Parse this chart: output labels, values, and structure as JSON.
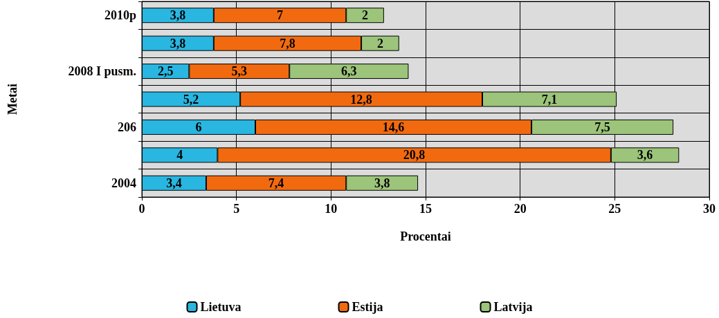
{
  "chart_data": {
    "type": "bar",
    "orientation": "horizontal",
    "stacked": true,
    "xlabel": "Procentai",
    "ylabel": "Metai",
    "categories": [
      "2010p",
      null,
      "2008 I pusm.",
      null,
      "206",
      null,
      "2004"
    ],
    "series": [
      {
        "name": "Lietuva",
        "color": "#29b6e0",
        "values": [
          3.8,
          3.8,
          2.5,
          5.2,
          6,
          4,
          3.4
        ],
        "value_labels": [
          "3,8",
          "3,8",
          "2,5",
          "5,2",
          "6",
          "4",
          "3,4"
        ]
      },
      {
        "name": "Estija",
        "color": "#f26a10",
        "values": [
          7,
          7.8,
          5.3,
          12.8,
          14.6,
          20.8,
          7.4
        ],
        "value_labels": [
          "7",
          "7,8",
          "5,3",
          "12,8",
          "14,6",
          "20,8",
          "7,4"
        ]
      },
      {
        "name": "Latvija",
        "color": "#9cc47a",
        "values": [
          2,
          2,
          6.3,
          7.1,
          7.5,
          3.6,
          3.8
        ],
        "value_labels": [
          "2",
          "2",
          "6,3",
          "7,1",
          "7,5",
          "3,6",
          "3,8"
        ]
      }
    ],
    "xlim": [
      0,
      30
    ],
    "xticks": [
      0,
      5,
      10,
      15,
      20,
      25,
      30
    ],
    "grid": true,
    "legend": "bottom"
  }
}
